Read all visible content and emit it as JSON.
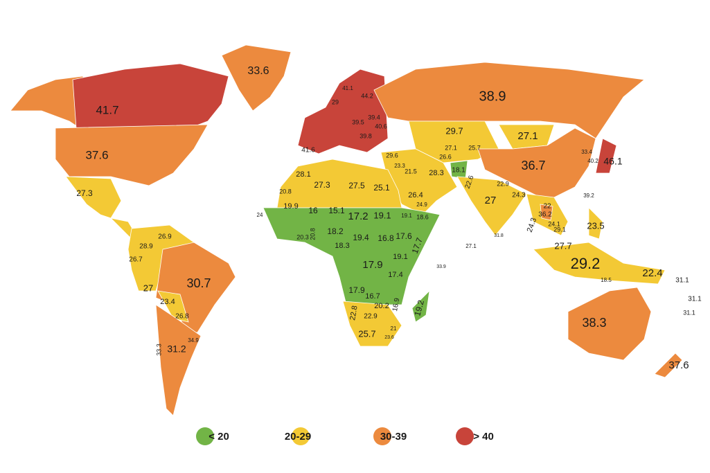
{
  "map": {
    "labels": [
      "33.6",
      "41.7",
      "37.6",
      "38.9",
      "27.3",
      "29.7",
      "27.1",
      "36.7",
      "46.1",
      "33.4",
      "40.2",
      "39.2",
      "28.1",
      "27.3",
      "27.5",
      "25.1",
      "26.4",
      "28.3",
      "21.5",
      "29.6",
      "18.1",
      "22.6",
      "22.9",
      "24.3",
      "27",
      "24.3",
      "22",
      "36.2",
      "24.1",
      "29.1",
      "23.5",
      "27.7",
      "29.2",
      "22.4",
      "31.1",
      "31.1",
      "31.1",
      "38.3",
      "37.6",
      "18.5",
      "41.6",
      "20.8",
      "19.9",
      "16",
      "15.1",
      "17.2",
      "19.1",
      "18.2",
      "19.4",
      "16.8",
      "17.6",
      "17.7",
      "19.1",
      "18.3",
      "17.9",
      "17.4",
      "17.9",
      "16.7",
      "22.8",
      "20.2",
      "22.9",
      "16.9",
      "19.2",
      "25.7",
      "23.6",
      "21",
      "18.6",
      "19.1",
      "24",
      "20.3",
      "20.8",
      "26.9",
      "28.9",
      "26.7",
      "27",
      "30.7",
      "23.4",
      "26.8",
      "31.2",
      "33.3",
      "34.9",
      "27.1",
      "33.9",
      "31.8",
      "23.3",
      "24.9",
      "25.7",
      "27.1",
      "26.6",
      "29",
      "44.2",
      "40.6",
      "39.5",
      "39.4",
      "39.8",
      "41.1"
    ],
    "legend": [
      {
        "label": "< 20",
        "color": "#72b446"
      },
      {
        "label": "20-29",
        "color": "#f3c935"
      },
      {
        "label": "30-39",
        "color": "#ec8a3e"
      },
      {
        "label": "> 40",
        "color": "#c8443a"
      }
    ]
  }
}
